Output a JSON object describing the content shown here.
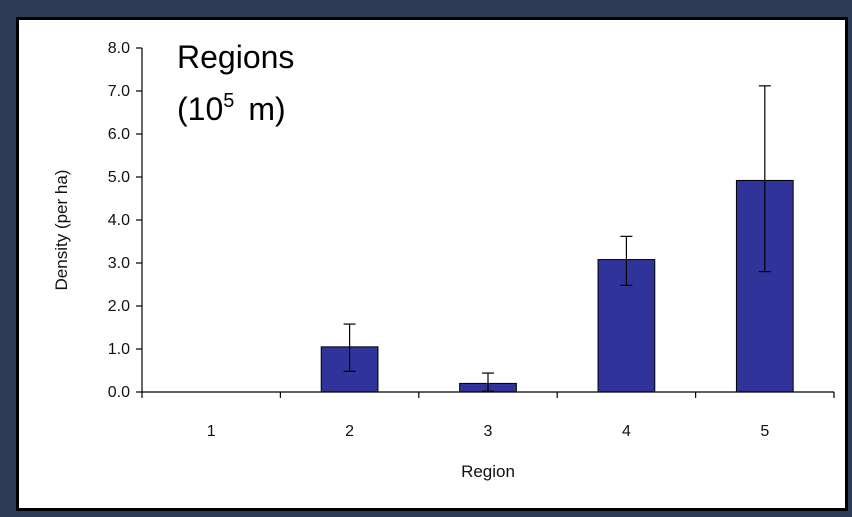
{
  "chart_data": {
    "type": "bar",
    "categories": [
      "1",
      "2",
      "3",
      "4",
      "5"
    ],
    "values": [
      0.0,
      1.05,
      0.2,
      3.08,
      4.92
    ],
    "error_low": [
      0.0,
      0.48,
      0.02,
      2.48,
      2.8
    ],
    "error_high": [
      0.0,
      1.58,
      0.44,
      3.62,
      7.12
    ],
    "xlabel": "Region",
    "ylabel": "Density (per ha)",
    "ylim": [
      0,
      8
    ],
    "yticks": [
      "0.0",
      "1.0",
      "2.0",
      "3.0",
      "4.0",
      "5.0",
      "6.0",
      "7.0",
      "8.0"
    ],
    "grid": false,
    "bar_color": "#30349a",
    "annotation": {
      "line1": "Regions",
      "line2_prefix": "(10",
      "line2_sup": "5",
      "line2_suffix": "m)"
    }
  }
}
